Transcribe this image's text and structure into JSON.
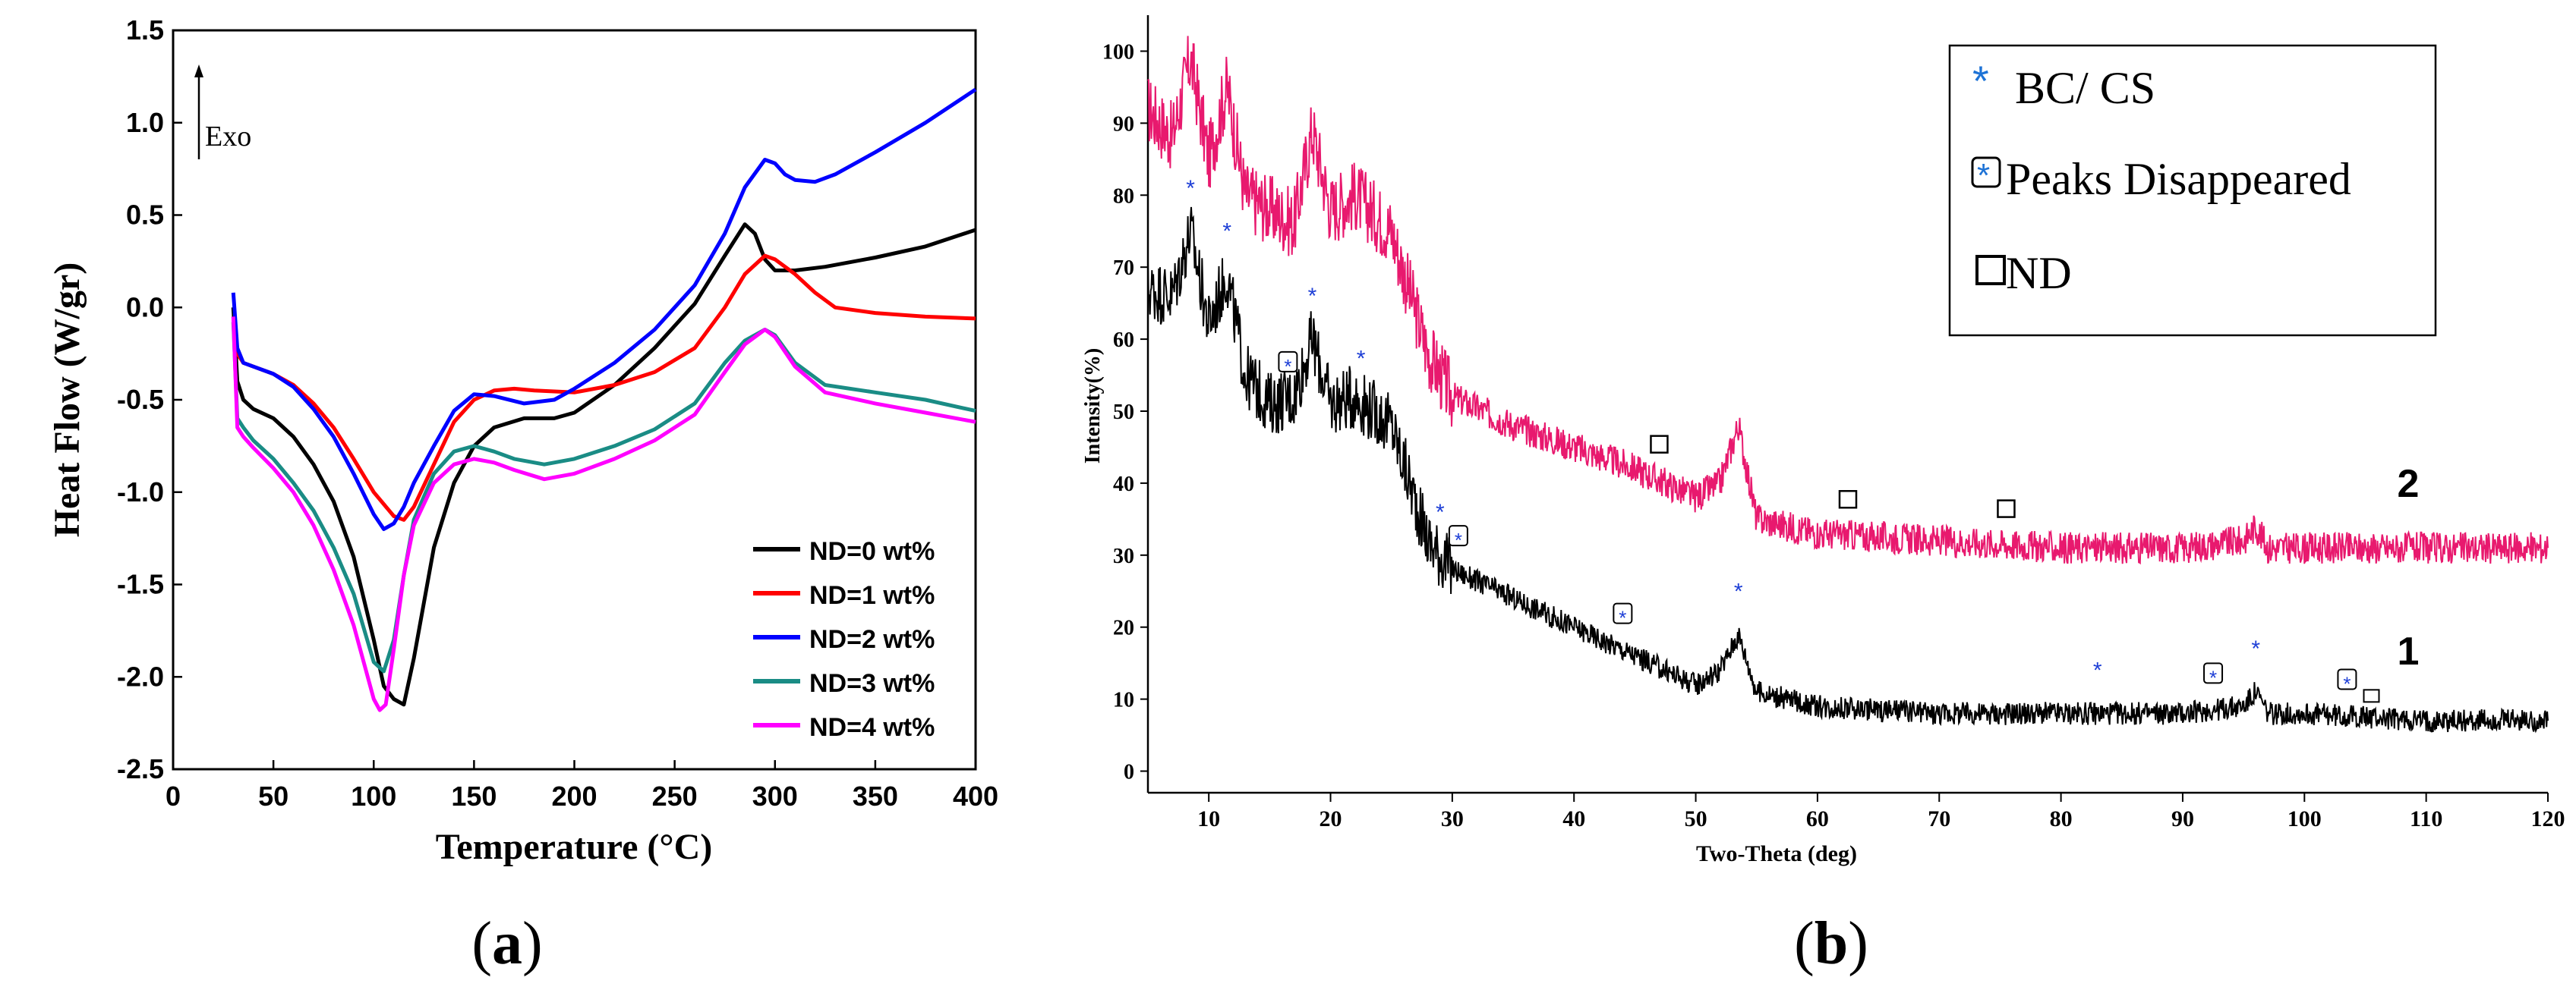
{
  "chart_data": [
    {
      "id": "a",
      "type": "line",
      "panel_label": "a",
      "title": "",
      "xlabel": "Temperature (°C)",
      "ylabel": "Heat Flow (W/gr)",
      "xlim": [
        0,
        400
      ],
      "ylim": [
        -2.5,
        1.5
      ],
      "xticks": [
        0,
        50,
        100,
        150,
        200,
        250,
        300,
        350,
        400
      ],
      "yticks": [
        -2.5,
        -2.0,
        -1.5,
        -1.0,
        -0.5,
        0.0,
        0.5,
        1.0,
        1.5
      ],
      "ytick_labels": [
        "-2.5",
        "-2.0",
        "-1.5",
        "-1.0",
        "-0.5",
        "0.0",
        "0.5",
        "1.0",
        "1.5"
      ],
      "grid": false,
      "annotation": "Exo",
      "legend_position": "bottom-right",
      "series": [
        {
          "name": "ND=0 wt%",
          "color": "#000000",
          "x": [
            30,
            32,
            35,
            40,
            50,
            60,
            70,
            80,
            90,
            100,
            105,
            110,
            115,
            120,
            130,
            140,
            150,
            160,
            175,
            190,
            200,
            220,
            240,
            260,
            275,
            285,
            290,
            295,
            300,
            310,
            325,
            350,
            375,
            400
          ],
          "y": [
            0.0,
            -0.4,
            -0.5,
            -0.55,
            -0.6,
            -0.7,
            -0.85,
            -1.05,
            -1.35,
            -1.8,
            -2.05,
            -2.12,
            -2.15,
            -1.9,
            -1.3,
            -0.95,
            -0.75,
            -0.65,
            -0.6,
            -0.6,
            -0.57,
            -0.42,
            -0.22,
            0.02,
            0.28,
            0.45,
            0.4,
            0.26,
            0.2,
            0.2,
            0.22,
            0.27,
            0.33,
            0.42
          ]
        },
        {
          "name": "ND=1 wt%",
          "color": "#ff0000",
          "x": [
            30,
            32,
            35,
            40,
            50,
            60,
            70,
            80,
            90,
            100,
            110,
            115,
            120,
            130,
            140,
            150,
            160,
            170,
            180,
            200,
            220,
            240,
            260,
            275,
            285,
            295,
            300,
            310,
            320,
            330,
            350,
            375,
            400
          ],
          "y": [
            -0.05,
            -0.25,
            -0.3,
            -0.32,
            -0.36,
            -0.42,
            -0.52,
            -0.65,
            -0.82,
            -1.0,
            -1.13,
            -1.15,
            -1.08,
            -0.85,
            -0.62,
            -0.5,
            -0.45,
            -0.44,
            -0.45,
            -0.46,
            -0.42,
            -0.35,
            -0.22,
            0.0,
            0.18,
            0.28,
            0.26,
            0.18,
            0.08,
            0.0,
            -0.03,
            -0.05,
            -0.06
          ]
        },
        {
          "name": "ND=2 wt%",
          "color": "#0000ff",
          "x": [
            30,
            32,
            35,
            40,
            50,
            60,
            70,
            80,
            90,
            100,
            105,
            110,
            115,
            120,
            130,
            140,
            150,
            160,
            175,
            190,
            200,
            220,
            240,
            260,
            275,
            285,
            295,
            300,
            305,
            310,
            320,
            330,
            350,
            375,
            400
          ],
          "y": [
            0.08,
            -0.22,
            -0.3,
            -0.32,
            -0.36,
            -0.43,
            -0.55,
            -0.7,
            -0.9,
            -1.12,
            -1.2,
            -1.17,
            -1.08,
            -0.95,
            -0.75,
            -0.56,
            -0.47,
            -0.48,
            -0.52,
            -0.5,
            -0.44,
            -0.3,
            -0.12,
            0.12,
            0.4,
            0.65,
            0.8,
            0.78,
            0.72,
            0.69,
            0.68,
            0.72,
            0.84,
            1.0,
            1.18
          ]
        },
        {
          "name": "ND=3 wt%",
          "color": "#1a8c85",
          "x": [
            30,
            32,
            35,
            40,
            50,
            60,
            70,
            80,
            90,
            100,
            105,
            110,
            115,
            120,
            130,
            140,
            150,
            160,
            170,
            185,
            200,
            220,
            240,
            260,
            275,
            285,
            295,
            300,
            310,
            325,
            350,
            375,
            400
          ],
          "y": [
            -0.08,
            -0.6,
            -0.65,
            -0.72,
            -0.82,
            -0.95,
            -1.1,
            -1.3,
            -1.55,
            -1.92,
            -1.97,
            -1.8,
            -1.45,
            -1.15,
            -0.9,
            -0.78,
            -0.75,
            -0.78,
            -0.82,
            -0.85,
            -0.82,
            -0.75,
            -0.66,
            -0.52,
            -0.3,
            -0.18,
            -0.12,
            -0.15,
            -0.3,
            -0.42,
            -0.46,
            -0.5,
            -0.56
          ]
        },
        {
          "name": "ND=4 wt%",
          "color": "#ff00ff",
          "x": [
            30,
            32,
            35,
            40,
            50,
            60,
            70,
            80,
            90,
            100,
            103,
            106,
            110,
            115,
            120,
            130,
            140,
            150,
            160,
            170,
            185,
            200,
            220,
            240,
            260,
            275,
            285,
            295,
            300,
            310,
            325,
            350,
            375,
            400
          ],
          "y": [
            -0.05,
            -0.65,
            -0.7,
            -0.76,
            -0.87,
            -1.0,
            -1.18,
            -1.42,
            -1.72,
            -2.12,
            -2.18,
            -2.15,
            -1.85,
            -1.45,
            -1.18,
            -0.95,
            -0.85,
            -0.82,
            -0.84,
            -0.88,
            -0.93,
            -0.9,
            -0.82,
            -0.72,
            -0.58,
            -0.35,
            -0.2,
            -0.12,
            -0.16,
            -0.32,
            -0.46,
            -0.52,
            -0.57,
            -0.62
          ]
        }
      ]
    },
    {
      "id": "b",
      "type": "line",
      "panel_label": "b",
      "title": "",
      "xlabel": "Two-Theta (deg)",
      "ylabel": "Intensity(%)",
      "xlim": [
        5,
        120
      ],
      "ylim": [
        -3,
        105
      ],
      "xticks": [
        10,
        20,
        30,
        40,
        50,
        60,
        70,
        80,
        90,
        100,
        110,
        120
      ],
      "yticks": [
        0,
        10,
        20,
        30,
        40,
        50,
        60,
        70,
        80,
        90,
        100
      ],
      "grid": false,
      "legend_position": "top-right",
      "legend": [
        {
          "symbol": "*",
          "label": "BC/ CS"
        },
        {
          "symbol": "boxed-*",
          "label": "Peaks Disappeared"
        },
        {
          "symbol": "box",
          "label": "ND"
        }
      ],
      "curve_labels": [
        {
          "label": "2",
          "x": 116,
          "y": 40
        },
        {
          "label": "1",
          "x": 116,
          "y": 16
        }
      ],
      "series": [
        {
          "name": "2",
          "color": "#e8196e",
          "x": [
            5,
            7,
            8.5,
            10,
            11.5,
            13,
            15,
            17,
            18.5,
            20,
            22,
            25,
            28,
            30,
            35,
            40,
            45,
            50,
            52,
            53.5,
            55,
            60,
            70,
            80,
            90,
            95,
            96,
            97,
            100,
            110,
            120
          ],
          "y": [
            92,
            88,
            99,
            85,
            95,
            80,
            78,
            76,
            89,
            78,
            80,
            75,
            58,
            52,
            48,
            45,
            42,
            38,
            40,
            48,
            35,
            33,
            32,
            31,
            31,
            32,
            34,
            31,
            31,
            31,
            31
          ]
        },
        {
          "name": "1",
          "color": "#000000",
          "x": [
            5,
            7,
            8.5,
            10,
            11.5,
            13,
            15,
            17,
            18.5,
            20,
            22,
            25,
            28,
            30,
            35,
            40,
            45,
            50,
            52,
            53.5,
            55,
            60,
            70,
            80,
            90,
            95,
            96,
            97,
            100,
            110,
            120
          ],
          "y": [
            67,
            66,
            75,
            62,
            69,
            55,
            51,
            52,
            60,
            51,
            52,
            48,
            32,
            28,
            24,
            20,
            16,
            12,
            14,
            19,
            11,
            9,
            8,
            8,
            8,
            9,
            11,
            8,
            8,
            7,
            7
          ]
        }
      ],
      "asterisks": [
        8.5,
        11.5,
        18.5,
        22.5,
        29,
        53.5,
        83,
        96
      ],
      "boxed_asterisks": [
        16.5,
        30.5,
        44,
        92.5,
        103.5
      ],
      "nd_squares": [
        47,
        62.5,
        75.5
      ],
      "small_boxes_on_curve1": [
        105.5
      ]
    }
  ],
  "figure": {
    "panel_a_label": "(a)",
    "panel_b_label": "(b)"
  }
}
